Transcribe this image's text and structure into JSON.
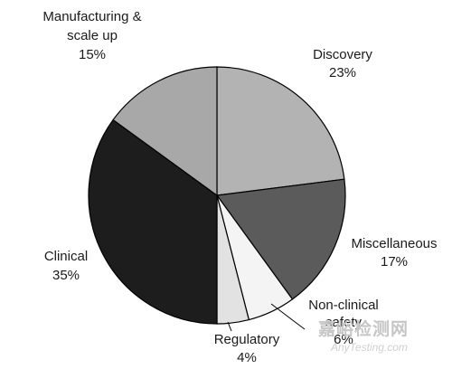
{
  "chart_data": {
    "type": "pie",
    "title": "",
    "slices": [
      {
        "label": "Discovery",
        "value": 23,
        "display": "23%",
        "color": "#b3b3b3"
      },
      {
        "label": "Miscellaneous",
        "value": 17,
        "display": "17%",
        "color": "#5b5b5b"
      },
      {
        "label": "Non-clinical safety",
        "value": 6,
        "display": "6%",
        "color": "#f4f4f4"
      },
      {
        "label": "Regulatory",
        "value": 4,
        "display": "4%",
        "color": "#e2e2e2"
      },
      {
        "label": "Clinical",
        "value": 35,
        "display": "35%",
        "color": "#1d1d1d"
      },
      {
        "label": "Manufacturing & scale up",
        "value": 15,
        "display": "15%",
        "color": "#a8a8a8"
      }
    ],
    "start": "12 o'clock",
    "direction": "clockwise"
  },
  "labels": [
    {
      "lines": [
        "Discovery",
        "23%"
      ]
    },
    {
      "lines": [
        "Miscellaneous",
        "17%"
      ]
    },
    {
      "lines": [
        "Non-clinical",
        "safety",
        "6%"
      ]
    },
    {
      "lines": [
        "Regulatory",
        "4%"
      ]
    },
    {
      "lines": [
        "Clinical",
        "35%"
      ]
    },
    {
      "lines": [
        "Manufacturing &",
        "scale up",
        "15%"
      ]
    }
  ],
  "watermark": {
    "cn": "嘉峪检测网",
    "en": "AnyTesting.com"
  }
}
